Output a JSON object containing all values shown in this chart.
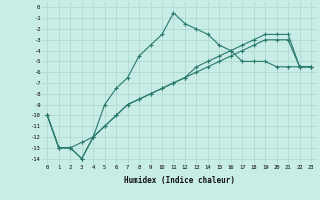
{
  "title": "",
  "xlabel": "Humidex (Indice chaleur)",
  "bg_color": "#c8ece6",
  "grid_color": "#aed4ce",
  "line_color": "#2a7a6a",
  "xlim": [
    -0.5,
    23.5
  ],
  "ylim": [
    -14.5,
    0.5
  ],
  "xticks": [
    0,
    1,
    2,
    3,
    4,
    5,
    6,
    7,
    8,
    9,
    10,
    11,
    12,
    13,
    14,
    15,
    16,
    17,
    18,
    19,
    20,
    21,
    22,
    23
  ],
  "yticks": [
    0,
    -1,
    -2,
    -3,
    -4,
    -5,
    -6,
    -7,
    -8,
    -9,
    -10,
    -11,
    -12,
    -13,
    -14
  ],
  "line1_x": [
    0,
    1,
    2,
    3,
    4,
    5,
    6,
    7,
    8,
    9,
    10,
    11,
    12,
    13,
    14,
    15,
    16,
    17,
    18,
    19,
    20,
    21,
    22,
    23
  ],
  "line1_y": [
    -10,
    -13,
    -13,
    -14,
    -12,
    -9,
    -7.5,
    -6.5,
    -4.5,
    -3.5,
    -2.5,
    -0.5,
    -1.5,
    -2,
    -2.5,
    -3.5,
    -4,
    -5,
    -5,
    -5,
    -5.5,
    -5.5,
    -5.5,
    -5.5
  ],
  "line2_x": [
    0,
    1,
    2,
    3,
    4,
    5,
    6,
    7,
    8,
    9,
    10,
    11,
    12,
    13,
    14,
    15,
    16,
    17,
    18,
    19,
    20,
    21,
    22,
    23
  ],
  "line2_y": [
    -10,
    -13,
    -13,
    -12.5,
    -12,
    -11,
    -10,
    -9,
    -8.5,
    -8,
    -7.5,
    -7,
    -6.5,
    -6,
    -5.5,
    -5,
    -4.5,
    -4,
    -3.5,
    -3.0,
    -3.0,
    -3.0,
    -5.5,
    -5.5
  ],
  "line3_x": [
    0,
    1,
    2,
    3,
    4,
    5,
    6,
    7,
    8,
    9,
    10,
    11,
    12,
    13,
    14,
    15,
    16,
    17,
    18,
    19,
    20,
    21,
    22,
    23
  ],
  "line3_y": [
    -10,
    -13,
    -13,
    -14,
    -12,
    -11,
    -10,
    -9,
    -8.5,
    -8,
    -7.5,
    -7,
    -6.5,
    -5.5,
    -5,
    -4.5,
    -4,
    -3.5,
    -3,
    -2.5,
    -2.5,
    -2.5,
    -5.5,
    -5.5
  ]
}
